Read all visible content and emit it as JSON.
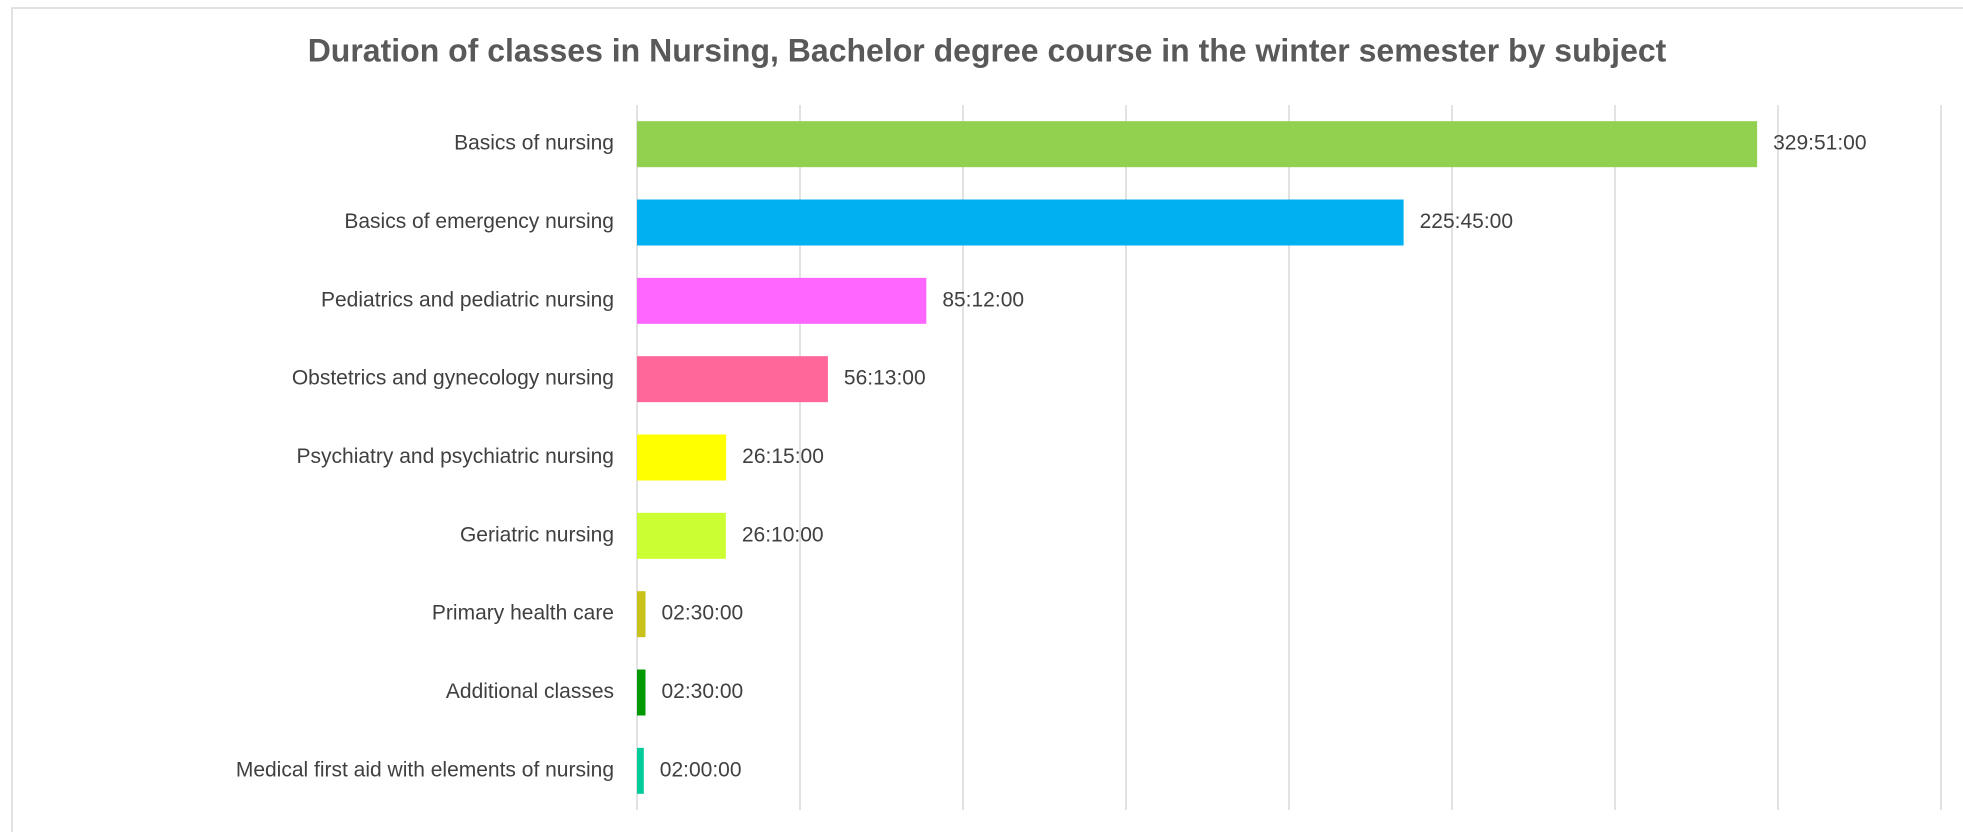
{
  "chart_data": {
    "type": "hbar",
    "title": "Duration of classes in Nursing, Bachelor degree course in the winter semester by subject",
    "categories": [
      "Basics of nursing",
      "Basics of emergency nursing",
      "Pediatrics and pediatric nursing",
      "Obstetrics and gynecology nursing",
      "Psychiatry and psychiatric nursing",
      "Geriatric nursing",
      "Primary health care",
      "Additional classes",
      "Medical first aid with elements of nursing"
    ],
    "values": [
      329.85,
      225.75,
      85.2,
      56.2167,
      26.25,
      26.1667,
      2.5,
      2.5,
      2.0
    ],
    "value_labels": [
      "329:51:00",
      "225:45:00",
      "85:12:00",
      "56:13:00",
      "26:15:00",
      "26:10:00",
      "02:30:00",
      "02:30:00",
      "02:00:00"
    ],
    "colors": [
      "#92d050",
      "#00b0f0",
      "#ff66ff",
      "#ff6699",
      "#ffff00",
      "#ccff33",
      "#c8c21a",
      "#009a00",
      "#00cc99"
    ],
    "xlim": [
      0,
      384
    ],
    "xticks": [
      0,
      48,
      96,
      144,
      192,
      240,
      288,
      336,
      384
    ],
    "grid": true
  }
}
